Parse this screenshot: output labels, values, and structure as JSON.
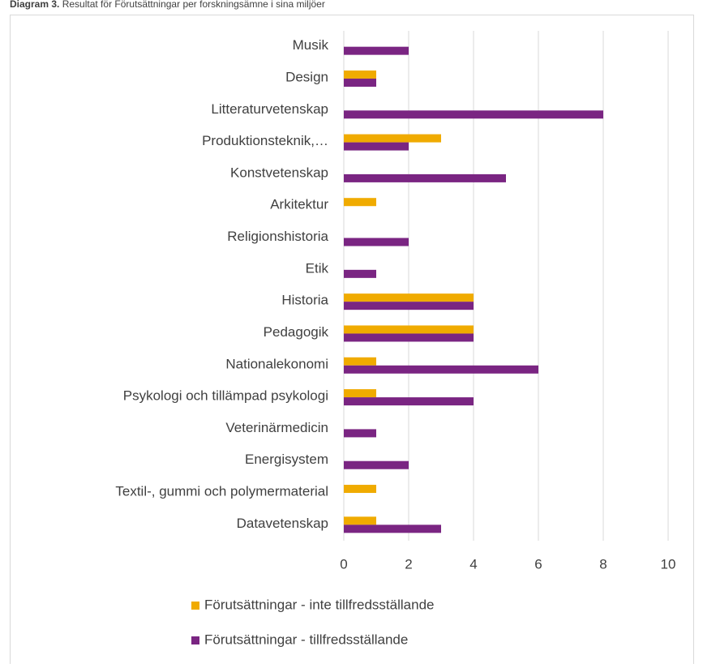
{
  "chart_data": {
    "type": "bar",
    "orientation": "horizontal",
    "title_label": "Diagram 3.",
    "title": "Resultat för Förutsättningar per forskningsämne i sina miljöer",
    "categories": [
      "Musik",
      "Design",
      "Litteraturvetenskap",
      "Produktionsteknik,…",
      "Konstvetenskap",
      "Arkitektur",
      "Religionshistoria",
      "Etik",
      "Historia ",
      "Pedagogik",
      "Nationalekonomi",
      "Psykologi och tillämpad psykologi",
      "Veterinärmedicin ",
      "Energisystem",
      "Textil-, gummi och polymermaterial",
      "Datavetenskap"
    ],
    "series": [
      {
        "name": "Förutsättningar - inte tillfredsställande",
        "color": "#f0ab00",
        "values": [
          0,
          1,
          0,
          3,
          0,
          1,
          0,
          0,
          4,
          4,
          1,
          1,
          0,
          0,
          1,
          1
        ]
      },
      {
        "name": "Förutsättningar - tillfredsställande",
        "color": "#7a2582",
        "values": [
          2,
          1,
          8,
          2,
          5,
          0,
          2,
          1,
          4,
          4,
          6,
          4,
          1,
          2,
          0,
          3
        ]
      }
    ],
    "xlim": [
      0,
      10
    ],
    "xticks": [
      0,
      2,
      4,
      6,
      8,
      10
    ],
    "grid": true
  }
}
